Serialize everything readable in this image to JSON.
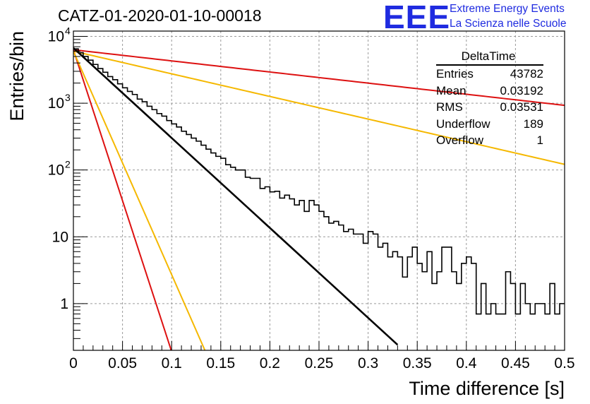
{
  "header": {
    "title": "CATZ-01-2020-01-10-00018"
  },
  "logo": {
    "mark": "EEE",
    "line1": "Extreme Energy Events",
    "line2": "La Scienza nelle Scuole"
  },
  "stats": {
    "title": "DeltaTime",
    "rows": [
      {
        "key": "Entries",
        "value": "43782"
      },
      {
        "key": "Mean",
        "value": "0.03192"
      },
      {
        "key": "RMS",
        "value": "0.03531"
      },
      {
        "key": "Underflow",
        "value": "189"
      },
      {
        "key": "Overflow",
        "value": "1"
      }
    ]
  },
  "chart_data": {
    "type": "line",
    "title": "CATZ-01-2020-01-10-00018",
    "xlabel": "Time difference [s]",
    "ylabel": "Entries/bin",
    "xlim": [
      0,
      0.5
    ],
    "ylim": [
      0.2,
      12000
    ],
    "y_scale": "log",
    "grid": true,
    "x_ticks": [
      "0",
      "0.05",
      "0.1",
      "0.15",
      "0.2",
      "0.25",
      "0.3",
      "0.35",
      "0.4",
      "0.45",
      "0.5"
    ],
    "y_ticks": [
      {
        "value": 1,
        "label": "1"
      },
      {
        "value": 10,
        "label": "10"
      },
      {
        "value": 100,
        "label": "10",
        "exp": "2"
      },
      {
        "value": 1000,
        "label": "10",
        "exp": "3"
      },
      {
        "value": 10000,
        "label": "10",
        "exp": "4"
      }
    ],
    "histogram": {
      "name": "DeltaTime",
      "color": "#000000",
      "bin_width": 0.005,
      "counts": [
        6500,
        5700,
        5000,
        4400,
        3800,
        3300,
        2900,
        2500,
        2250,
        1950,
        1700,
        1500,
        1350,
        1150,
        1050,
        900,
        800,
        700,
        640,
        550,
        490,
        440,
        380,
        340,
        300,
        270,
        235,
        205,
        180,
        160,
        150,
        120,
        110,
        100,
        100,
        78,
        75,
        75,
        53,
        56,
        47,
        48,
        38,
        42,
        37,
        30,
        35,
        24,
        35,
        30,
        24,
        20,
        16,
        17,
        15,
        12,
        13,
        11,
        11,
        8,
        12,
        11,
        7,
        8,
        5,
        6,
        5,
        2.5,
        5,
        7,
        4,
        3,
        6,
        2,
        3,
        7,
        7,
        3,
        2,
        4,
        5,
        4,
        0.7,
        2,
        0.7,
        1,
        0.7,
        0.7,
        3,
        2,
        0.7,
        2,
        1,
        0.7,
        1,
        1,
        0.7,
        2,
        0.7,
        1
      ]
    },
    "fits": [
      {
        "color": "#000000",
        "amplitude": 6700,
        "slope": 31,
        "x_end": 0.33
      },
      {
        "color": "#dd1111",
        "amplitude": 6300,
        "slope": 3.83,
        "x_end": 0.5
      },
      {
        "color": "#f5b800",
        "amplitude": 6000,
        "slope": 7.8,
        "x_end": 0.5
      },
      {
        "color": "#dd1111",
        "amplitude": 6300,
        "slope": 104,
        "x_end": 0.11
      },
      {
        "color": "#f5b800",
        "amplitude": 6000,
        "slope": 77,
        "x_end": 0.135
      }
    ]
  }
}
